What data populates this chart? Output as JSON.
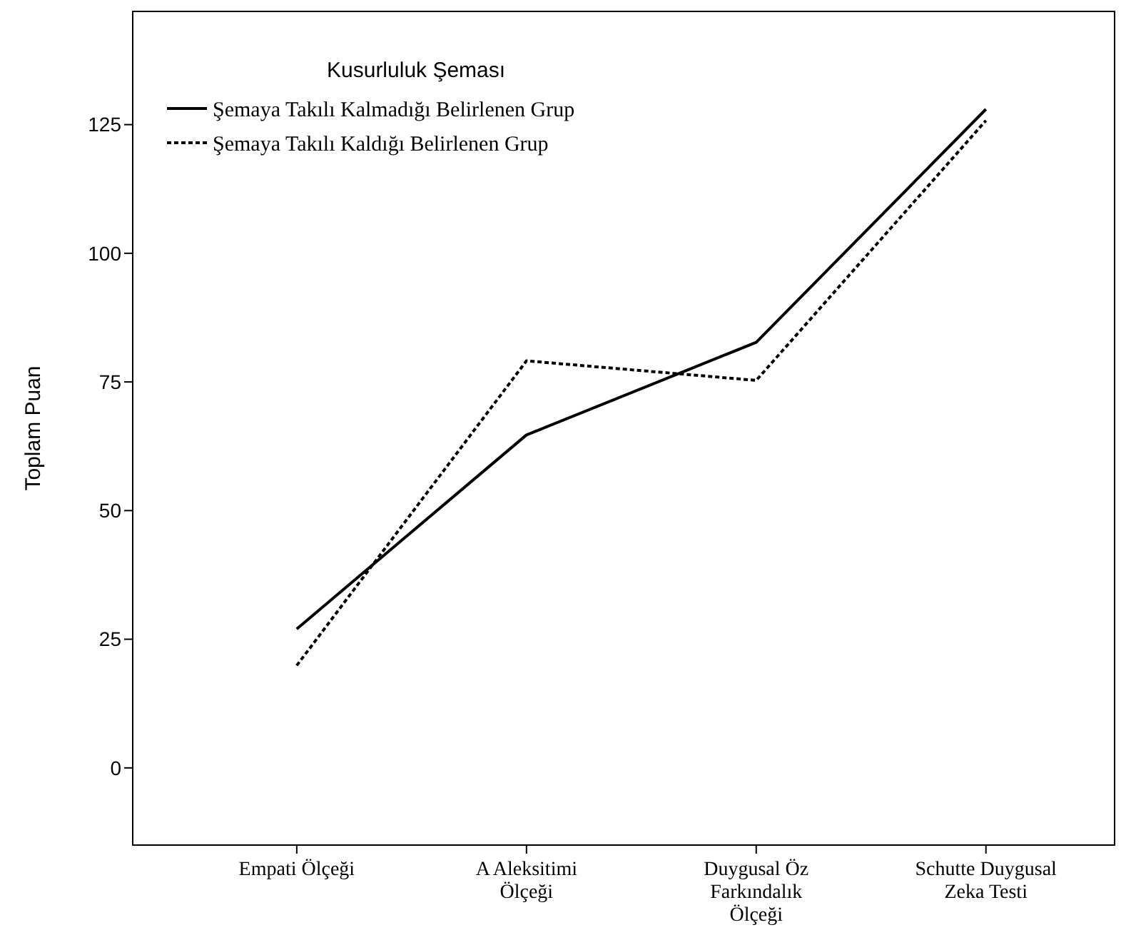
{
  "chart_data": {
    "type": "line",
    "ylabel": "Toplam Puan",
    "legend_title": "Kusurluluk Şeması",
    "legend": "top left",
    "grid": false,
    "categories": [
      "Empati Ölçeği",
      "A Aleksitimi Ölçeği",
      "Duygusal Öz Farkındalık Ölçeği",
      "Schutte Duygusal Zeka Testi"
    ],
    "ylim": [
      -15,
      147
    ],
    "yticks": [
      0,
      25,
      50,
      75,
      100,
      125
    ],
    "series": [
      {
        "name": "Şemaya Takılı Kalmadığı Belirlenen Grup",
        "color": "#000000",
        "line_style": "solid",
        "values": [
          27,
          64.7,
          82.7,
          128
        ]
      },
      {
        "name": "Şemaya Takılı Kaldığı Belirlenen Grup",
        "color": "#000000",
        "line_style": "dotted",
        "values": [
          19.9,
          79.1,
          75.3,
          125.8
        ]
      }
    ]
  }
}
